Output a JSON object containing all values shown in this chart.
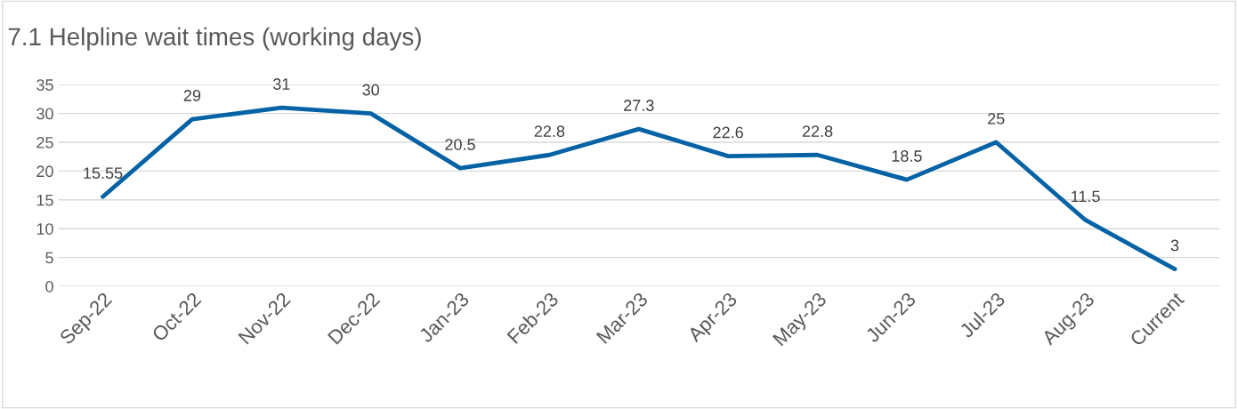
{
  "chart_data": {
    "type": "line",
    "title": "7.1 Helpline wait times (working days)",
    "categories": [
      "Sep-22",
      "Oct-22",
      "Nov-22",
      "Dec-22",
      "Jan-23",
      "Feb-23",
      "Mar-23",
      "Apr-23",
      "May-23",
      "Jun-23",
      "Jul-23",
      "Aug-23",
      "Current"
    ],
    "series": [
      {
        "color": "#0563a5",
        "values": [
          15.55,
          29,
          31,
          30,
          20.5,
          22.8,
          27.3,
          22.6,
          22.8,
          18.5,
          25,
          11.5,
          3
        ]
      }
    ],
    "ylim": [
      0,
      35
    ],
    "yticks": [
      0,
      5,
      10,
      15,
      20,
      25,
      30,
      35
    ],
    "grid": "y",
    "data_labels": true,
    "marker": "none",
    "line_style": "solid",
    "legend": false
  }
}
